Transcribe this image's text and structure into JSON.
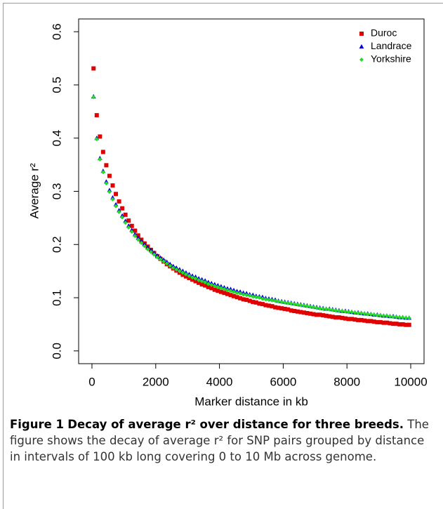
{
  "chart_data": {
    "type": "scatter",
    "x_label": "Marker distance in kb",
    "y_label": "Average r²",
    "xlim": [
      -418,
      10418
    ],
    "ylim": [
      -0.024,
      0.624
    ],
    "xticks": [
      0,
      2000,
      4000,
      6000,
      8000,
      10000
    ],
    "yticks": [
      0.0,
      0.1,
      0.2,
      0.3,
      0.4,
      0.5,
      0.6
    ],
    "legend": "top-right",
    "x": [
      50,
      150,
      250,
      350,
      450,
      550,
      650,
      750,
      850,
      950,
      1050,
      1150,
      1250,
      1350,
      1450,
      1550,
      1650,
      1750,
      1850,
      1950,
      2050,
      2150,
      2250,
      2350,
      2450,
      2550,
      2650,
      2750,
      2850,
      2950,
      3050,
      3150,
      3250,
      3350,
      3450,
      3550,
      3650,
      3750,
      3850,
      3950,
      4050,
      4150,
      4250,
      4350,
      4450,
      4550,
      4650,
      4750,
      4850,
      4950,
      5050,
      5150,
      5250,
      5350,
      5450,
      5550,
      5650,
      5750,
      5850,
      5950,
      6050,
      6150,
      6250,
      6350,
      6450,
      6550,
      6650,
      6750,
      6850,
      6950,
      7050,
      7150,
      7250,
      7350,
      7450,
      7550,
      7650,
      7750,
      7850,
      7950,
      8050,
      8150,
      8250,
      8350,
      8450,
      8550,
      8650,
      8750,
      8850,
      8950,
      9050,
      9150,
      9250,
      9350,
      9450,
      9550,
      9650,
      9750,
      9850,
      9950
    ],
    "series": [
      {
        "name": "Duroc",
        "color": "#e00000",
        "marker": "square",
        "values": [
          0.531,
          0.443,
          0.403,
          0.374,
          0.349,
          0.329,
          0.311,
          0.295,
          0.281,
          0.268,
          0.256,
          0.245,
          0.235,
          0.226,
          0.217,
          0.209,
          0.202,
          0.196,
          0.19,
          0.184,
          0.178,
          0.173,
          0.168,
          0.163,
          0.159,
          0.155,
          0.151,
          0.147,
          0.143,
          0.14,
          0.137,
          0.134,
          0.131,
          0.128,
          0.125,
          0.123,
          0.12,
          0.118,
          0.115,
          0.113,
          0.111,
          0.109,
          0.107,
          0.105,
          0.103,
          0.101,
          0.099,
          0.097,
          0.096,
          0.094,
          0.092,
          0.091,
          0.089,
          0.088,
          0.086,
          0.085,
          0.084,
          0.082,
          0.081,
          0.08,
          0.079,
          0.078,
          0.076,
          0.075,
          0.074,
          0.073,
          0.072,
          0.071,
          0.07,
          0.069,
          0.068,
          0.068,
          0.067,
          0.066,
          0.065,
          0.064,
          0.063,
          0.063,
          0.062,
          0.061,
          0.06,
          0.06,
          0.059,
          0.058,
          0.058,
          0.057,
          0.056,
          0.056,
          0.055,
          0.054,
          0.054,
          0.053,
          0.053,
          0.052,
          0.051,
          0.051,
          0.05,
          0.05,
          0.049,
          0.049
        ]
      },
      {
        "name": "Landrace",
        "color": "#0000e0",
        "marker": "triangle",
        "values": [
          0.478,
          0.4,
          0.362,
          0.338,
          0.318,
          0.302,
          0.288,
          0.275,
          0.264,
          0.254,
          0.244,
          0.235,
          0.227,
          0.219,
          0.212,
          0.206,
          0.2,
          0.194,
          0.189,
          0.184,
          0.179,
          0.175,
          0.171,
          0.167,
          0.163,
          0.159,
          0.156,
          0.153,
          0.15,
          0.147,
          0.144,
          0.141,
          0.139,
          0.136,
          0.134,
          0.132,
          0.129,
          0.127,
          0.125,
          0.123,
          0.121,
          0.119,
          0.117,
          0.116,
          0.114,
          0.112,
          0.111,
          0.109,
          0.108,
          0.106,
          0.105,
          0.103,
          0.102,
          0.101,
          0.099,
          0.098,
          0.097,
          0.096,
          0.094,
          0.093,
          0.092,
          0.091,
          0.09,
          0.089,
          0.088,
          0.087,
          0.086,
          0.085,
          0.084,
          0.083,
          0.082,
          0.081,
          0.08,
          0.079,
          0.079,
          0.078,
          0.077,
          0.076,
          0.075,
          0.075,
          0.074,
          0.073,
          0.072,
          0.072,
          0.071,
          0.07,
          0.07,
          0.069,
          0.068,
          0.068,
          0.067,
          0.066,
          0.066,
          0.065,
          0.065,
          0.064,
          0.063,
          0.063,
          0.062,
          0.062
        ]
      },
      {
        "name": "Yorkshire",
        "color": "#22dd22",
        "marker": "diamond",
        "values": [
          0.477,
          0.398,
          0.36,
          0.336,
          0.315,
          0.299,
          0.285,
          0.272,
          0.261,
          0.251,
          0.241,
          0.232,
          0.224,
          0.216,
          0.209,
          0.203,
          0.197,
          0.191,
          0.186,
          0.181,
          0.176,
          0.172,
          0.168,
          0.164,
          0.16,
          0.156,
          0.153,
          0.15,
          0.147,
          0.144,
          0.141,
          0.138,
          0.136,
          0.133,
          0.131,
          0.129,
          0.126,
          0.124,
          0.122,
          0.12,
          0.118,
          0.116,
          0.114,
          0.113,
          0.111,
          0.109,
          0.108,
          0.106,
          0.105,
          0.104,
          0.102,
          0.101,
          0.1,
          0.098,
          0.097,
          0.096,
          0.095,
          0.094,
          0.093,
          0.092,
          0.091,
          0.09,
          0.089,
          0.088,
          0.087,
          0.086,
          0.085,
          0.084,
          0.083,
          0.082,
          0.081,
          0.08,
          0.079,
          0.079,
          0.078,
          0.077,
          0.076,
          0.075,
          0.075,
          0.074,
          0.073,
          0.073,
          0.072,
          0.071,
          0.071,
          0.07,
          0.069,
          0.069,
          0.068,
          0.067,
          0.067,
          0.066,
          0.066,
          0.065,
          0.064,
          0.064,
          0.063,
          0.063,
          0.062,
          0.062
        ]
      }
    ]
  },
  "caption": {
    "label": "Figure 1",
    "title": "Decay of average r² over distance for three breeds.",
    "text": "The figure shows the decay of average r² for SNP pairs grouped by distance in intervals of 100 kb long covering 0 to 10 Mb across genome."
  }
}
